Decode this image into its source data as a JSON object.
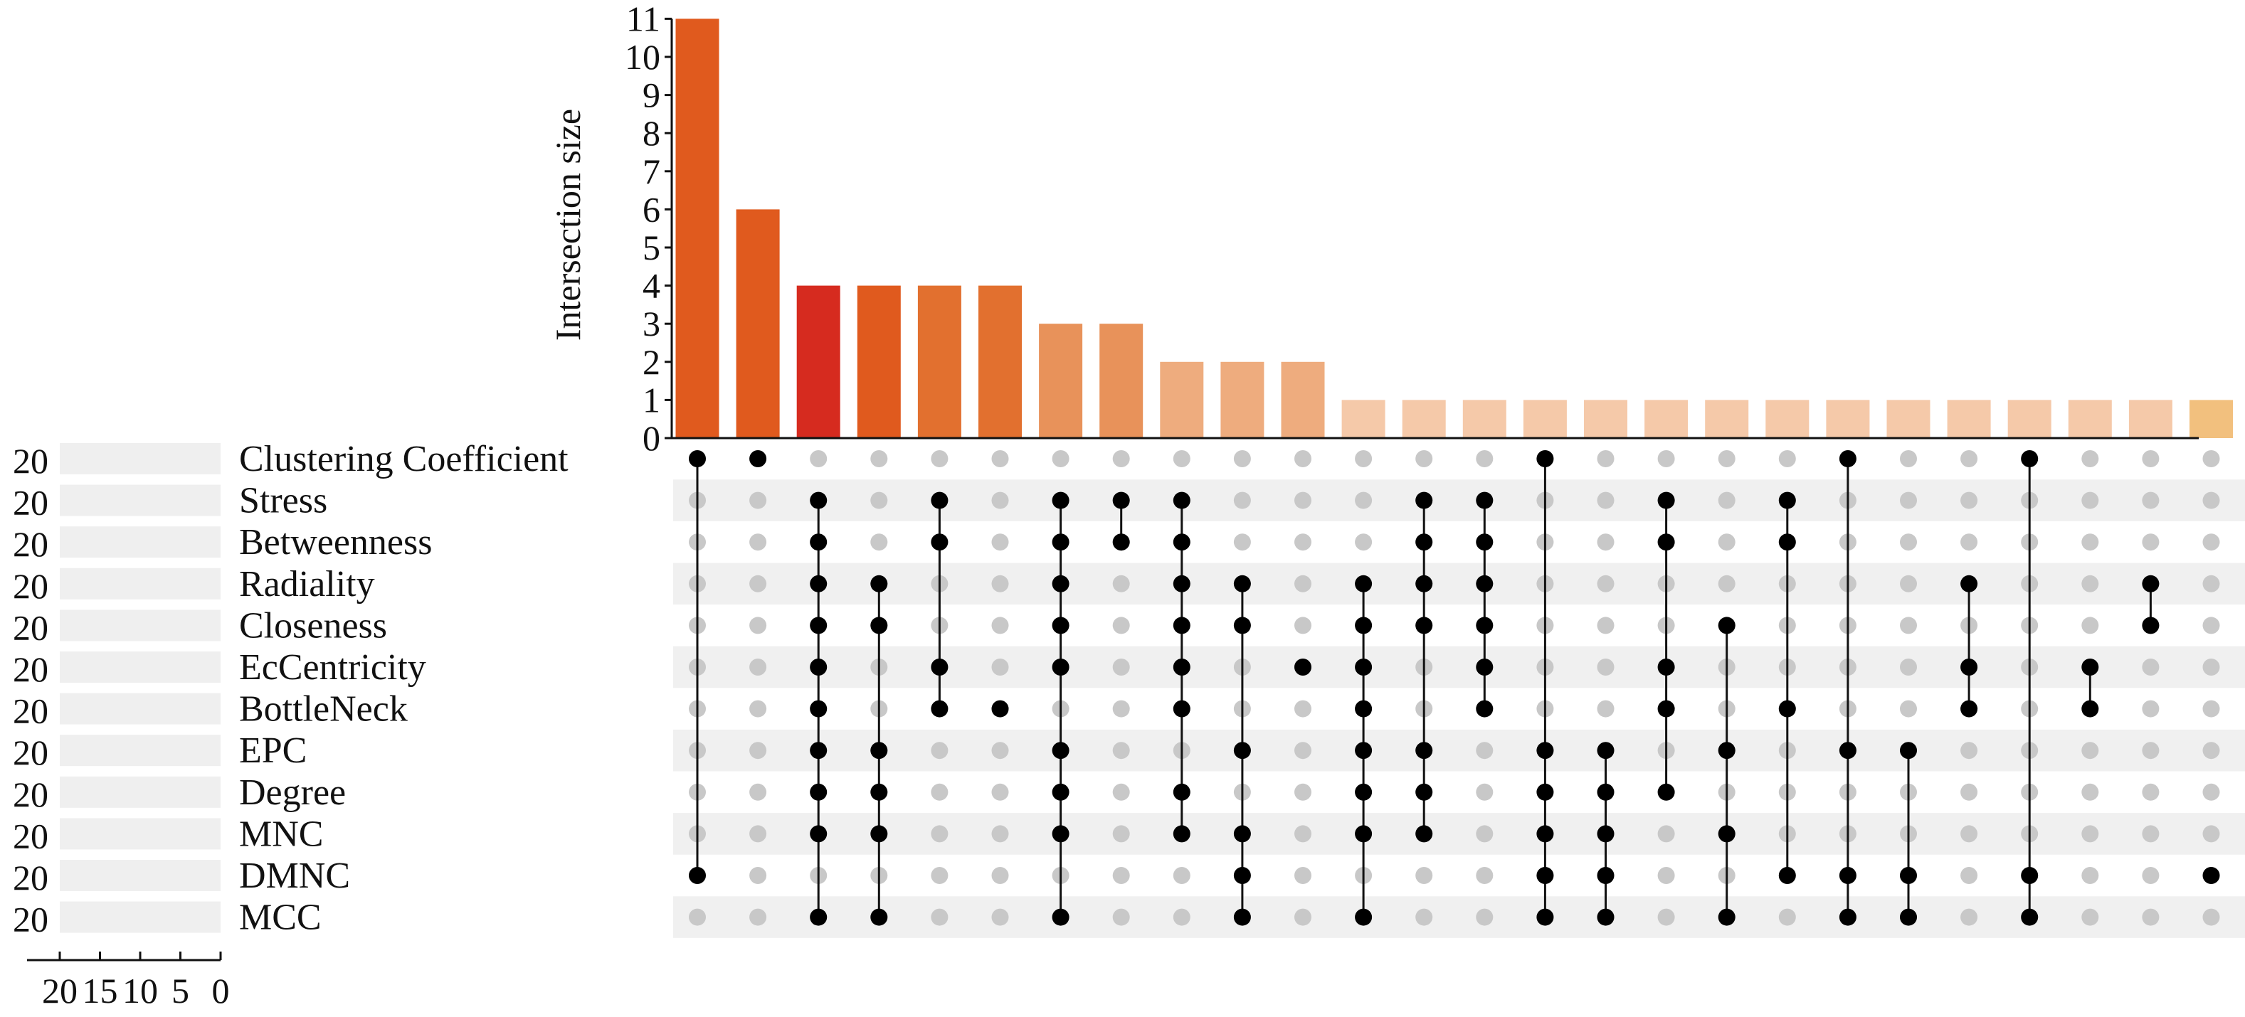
{
  "chart_data": {
    "type": "upset",
    "ylabel": "Intersection size",
    "ylim": [
      0,
      11
    ],
    "y_ticks": [
      "0",
      "1",
      "2",
      "3",
      "4",
      "5",
      "6",
      "7",
      "8",
      "9",
      "10",
      "11"
    ],
    "set_size_ticks": [
      "20",
      "15",
      "10",
      "5",
      "0"
    ],
    "sets": [
      {
        "name": "Clustering Coefficient",
        "size": 20
      },
      {
        "name": "Stress",
        "size": 20
      },
      {
        "name": "Betweenness",
        "size": 20
      },
      {
        "name": "Radiality",
        "size": 20
      },
      {
        "name": "Closeness",
        "size": 20
      },
      {
        "name": "EcCentricity",
        "size": 20
      },
      {
        "name": "BottleNeck",
        "size": 20
      },
      {
        "name": "EPC",
        "size": 20
      },
      {
        "name": "Degree",
        "size": 20
      },
      {
        "name": "MNC",
        "size": 20
      },
      {
        "name": "DMNC",
        "size": 20
      },
      {
        "name": "MCC",
        "size": 20
      }
    ],
    "intersections": [
      {
        "size": 11,
        "color": "#e05a1e",
        "members": [
          0,
          10
        ]
      },
      {
        "size": 6,
        "color": "#e05a1e",
        "members": [
          0
        ]
      },
      {
        "size": 4,
        "color": "#d62b1f",
        "members": [
          1,
          2,
          3,
          4,
          5,
          6,
          7,
          8,
          9,
          11
        ]
      },
      {
        "size": 4,
        "color": "#e05a1e",
        "members": [
          3,
          4,
          7,
          8,
          9,
          11
        ]
      },
      {
        "size": 4,
        "color": "#e2702f",
        "members": [
          1,
          2,
          5,
          6
        ]
      },
      {
        "size": 4,
        "color": "#e2702f",
        "members": [
          6
        ]
      },
      {
        "size": 3,
        "color": "#e8925a",
        "members": [
          1,
          2,
          3,
          4,
          5,
          7,
          8,
          9,
          11
        ]
      },
      {
        "size": 3,
        "color": "#e8925a",
        "members": [
          1,
          2
        ]
      },
      {
        "size": 2,
        "color": "#eeac7e",
        "members": [
          1,
          2,
          3,
          4,
          5,
          6,
          8,
          9
        ]
      },
      {
        "size": 2,
        "color": "#eeac7e",
        "members": [
          3,
          4,
          7,
          9,
          10,
          11
        ]
      },
      {
        "size": 2,
        "color": "#eeac7e",
        "members": [
          5
        ]
      },
      {
        "size": 1,
        "color": "#f5c9a9",
        "members": [
          3,
          4,
          5,
          6,
          7,
          8,
          9,
          11
        ]
      },
      {
        "size": 1,
        "color": "#f5c9a9",
        "members": [
          1,
          2,
          3,
          4,
          7,
          8,
          9
        ]
      },
      {
        "size": 1,
        "color": "#f5c9a9",
        "members": [
          1,
          2,
          3,
          4,
          5,
          6
        ]
      },
      {
        "size": 1,
        "color": "#f5c9a9",
        "members": [
          0,
          7,
          8,
          9,
          10,
          11
        ]
      },
      {
        "size": 1,
        "color": "#f5c9a9",
        "members": [
          7,
          8,
          9,
          10,
          11
        ]
      },
      {
        "size": 1,
        "color": "#f5c9a9",
        "members": [
          1,
          2,
          5,
          6,
          8
        ]
      },
      {
        "size": 1,
        "color": "#f5c9a9",
        "members": [
          4,
          7,
          9,
          11
        ]
      },
      {
        "size": 1,
        "color": "#f5c9a9",
        "members": [
          1,
          2,
          6,
          10
        ]
      },
      {
        "size": 1,
        "color": "#f5c9a9",
        "members": [
          0,
          7,
          10,
          11
        ]
      },
      {
        "size": 1,
        "color": "#f5c9a9",
        "members": [
          7,
          10,
          11
        ]
      },
      {
        "size": 1,
        "color": "#f5c9a9",
        "members": [
          3,
          5,
          6
        ]
      },
      {
        "size": 1,
        "color": "#f5c9a9",
        "members": [
          0,
          10,
          11
        ]
      },
      {
        "size": 1,
        "color": "#f5c9a9",
        "members": [
          5,
          6
        ]
      },
      {
        "size": 1,
        "color": "#f5c9a9",
        "members": [
          3,
          4
        ]
      },
      {
        "size": 1,
        "color": "#f2c07e",
        "members": [
          10
        ]
      }
    ],
    "grid": false,
    "legend": "none"
  }
}
